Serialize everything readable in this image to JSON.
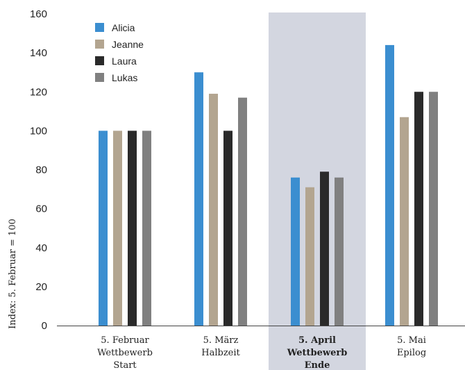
{
  "chart_data": {
    "type": "bar",
    "categories": [
      [
        "5. Februar",
        "Wettbewerb",
        "Start"
      ],
      [
        "5. März",
        "Halbzeit"
      ],
      [
        "5. April",
        "Wettbewerb",
        "Ende"
      ],
      [
        "5. Mai",
        "Epilog"
      ]
    ],
    "highlight_category": 2,
    "series": [
      {
        "name": "Alicia",
        "color": "#3b8ed0",
        "values": [
          100,
          130,
          76,
          144
        ]
      },
      {
        "name": "Jeanne",
        "color": "#b3a590",
        "values": [
          100,
          119,
          71,
          107
        ]
      },
      {
        "name": "Laura",
        "color": "#2a2a2a",
        "values": [
          100,
          100,
          79,
          120
        ]
      },
      {
        "name": "Lukas",
        "color": "#808080",
        "values": [
          100,
          117,
          76,
          120
        ]
      }
    ],
    "ylabel": "Index: 5. Februar = 100",
    "ylim": [
      0,
      160
    ],
    "yticks": [
      0,
      20,
      40,
      60,
      80,
      100,
      120,
      140,
      160
    ],
    "legend_position": "top-left",
    "grid": false,
    "highlight_color": "#d3d6e0"
  }
}
